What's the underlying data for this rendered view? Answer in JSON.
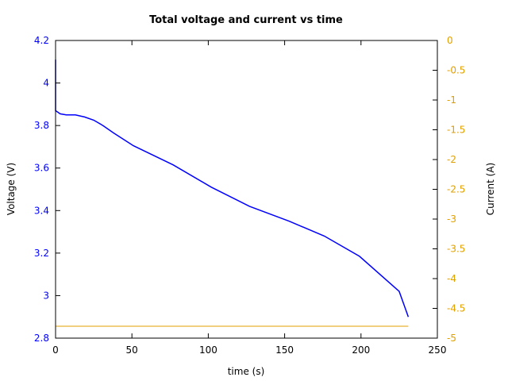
{
  "chart_data": {
    "type": "line",
    "title": "Total voltage and current vs time",
    "xlabel": "time (s)",
    "ylabel": "Voltage (V)",
    "y2label": "Current (A)",
    "xlim": [
      0,
      250
    ],
    "ylim": [
      2.8,
      4.2
    ],
    "y2lim": [
      -5,
      0
    ],
    "xticks": [
      "0",
      "50",
      "100",
      "150",
      "200",
      "250"
    ],
    "yticks": [
      "2.8",
      "3",
      "3.2",
      "3.4",
      "3.6",
      "3.8",
      "4",
      "4.2"
    ],
    "y2ticks": [
      "0",
      "-0.5",
      "-1",
      "-1.5",
      "-2",
      "-2.5",
      "-3",
      "-3.5",
      "-4",
      "-4.5",
      "-5"
    ],
    "grid": false,
    "legend": null,
    "series": [
      {
        "name": "Voltage",
        "axis": "left",
        "color": "#0000ff",
        "x": [
          0,
          0,
          3,
          7,
          13,
          19,
          25,
          31,
          38,
          51,
          77,
          102,
          127,
          153,
          176,
          199,
          225,
          231
        ],
        "values": [
          4.11,
          3.87,
          3.855,
          3.85,
          3.85,
          3.84,
          3.825,
          3.8,
          3.765,
          3.705,
          3.615,
          3.51,
          3.42,
          3.35,
          3.28,
          3.185,
          3.02,
          2.9
        ]
      },
      {
        "name": "Current",
        "axis": "right",
        "color": "#e0a000",
        "x": [
          0,
          231
        ],
        "values": [
          -4.8,
          -4.8
        ]
      }
    ]
  }
}
